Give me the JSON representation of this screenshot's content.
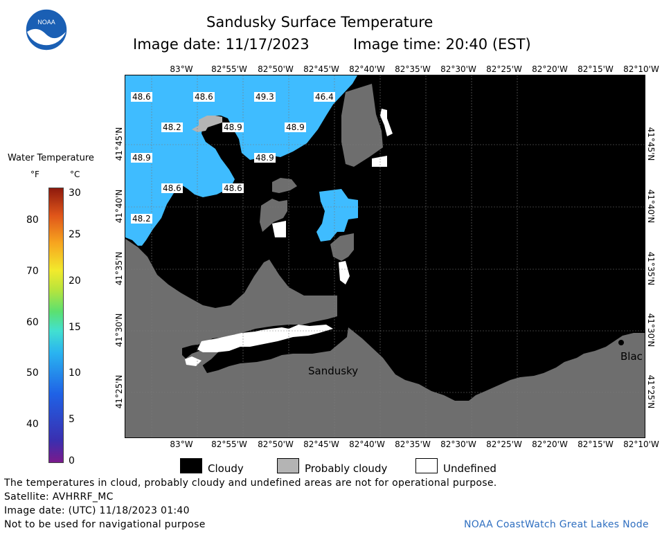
{
  "header": {
    "title": "Sandusky Surface Temperature",
    "image_date": "Image date: 11/17/2023",
    "image_time": "Image time: 20:40 (EST)",
    "logo_text": "NOAA"
  },
  "colorbar": {
    "title": "Water Temperature",
    "unit_f": "°F",
    "unit_c": "°C",
    "f_ticks": [
      "80",
      "70",
      "60",
      "50",
      "40"
    ],
    "c_ticks": [
      "30",
      "25",
      "20",
      "15",
      "10",
      "5",
      "0"
    ]
  },
  "map": {
    "lon_labels": [
      "83°W",
      "82°55'W",
      "82°50'W",
      "82°45'W",
      "82°40'W",
      "82°35'W",
      "82°30'W",
      "82°25'W",
      "82°20'W",
      "82°15'W",
      "82°10'W"
    ],
    "lat_labels": [
      "41°45'N",
      "41°40'N",
      "41°35'N",
      "41°30'N",
      "41°25'N"
    ],
    "temperature_labels": [
      "48.6",
      "48.6",
      "49.3",
      "46.4",
      "48.2",
      "48.9",
      "48.9",
      "48.9",
      "48.9",
      "48.6",
      "48.6",
      "48.2"
    ],
    "place_sandusky": "Sandusky",
    "place_blac": "Blac",
    "colors": {
      "water": "#3fbcff",
      "cloud": "#000000",
      "probably_cloudy": "#6e6e6e",
      "light_gray": "#b4b4b4",
      "undefined": "#ffffff"
    }
  },
  "legend": {
    "cloudy": "Cloudy",
    "probably_cloudy": "Probably cloudy",
    "undefined": "Undefined"
  },
  "footer": {
    "disclaimer": "The temperatures in cloud, probably cloudy and undefined areas are not for operational purpose.",
    "satellite": "Satellite: AVHRRF_MC",
    "utc_date": "Image date: (UTC) 11/18/2023  01:40",
    "nav_warning": "Not to be used for navigational purpose",
    "credit": "NOAA CoastWatch Great Lakes Node"
  }
}
